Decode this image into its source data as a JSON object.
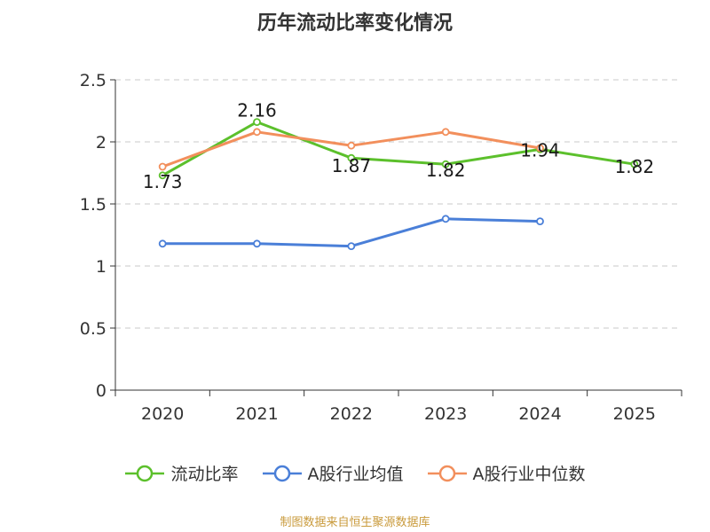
{
  "chart_data": {
    "type": "line",
    "title": "历年流动比率变化情况",
    "categories": [
      "2020",
      "2021",
      "2022",
      "2023",
      "2024",
      "2025"
    ],
    "ylim": [
      0,
      2.5
    ],
    "yticks": [
      "0",
      "0.5",
      "1",
      "1.5",
      "2",
      "2.5"
    ],
    "grid": true,
    "legend_position": "bottom",
    "series": [
      {
        "name": "流动比率",
        "color": "#5cc02c",
        "values": [
          1.73,
          2.16,
          1.87,
          1.82,
          1.94,
          1.82
        ],
        "labels": [
          "1.73",
          "2.16",
          "1.87",
          "1.82",
          "1.94",
          "1.82"
        ]
      },
      {
        "name": "A股行业均值",
        "color": "#4a7fd8",
        "values": [
          1.18,
          1.18,
          1.16,
          1.38,
          1.36,
          null
        ]
      },
      {
        "name": "A股行业中位数",
        "color": "#f28f5c",
        "values": [
          1.8,
          2.08,
          1.97,
          2.08,
          1.95,
          null
        ]
      }
    ]
  },
  "source": "制图数据来自恒生聚源数据库"
}
